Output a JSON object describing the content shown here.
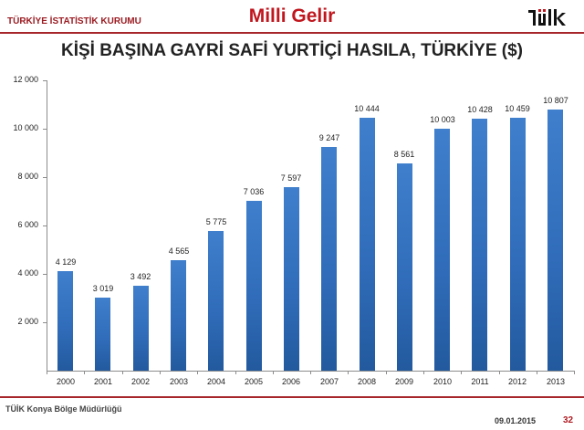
{
  "header": {
    "org_name": "TÜRKİYE İSTATİSTİK KURUMU",
    "section_title": "Milli Gelir",
    "logo_text": "TÜİK"
  },
  "main_title": "KİŞİ BAŞINA GAYRİ SAFİ YURTİÇİ HASILA, TÜRKİYE ($)",
  "footer": {
    "office": "TÜİK Konya Bölge Müdürlüğü",
    "date": "09.01.2015",
    "page_number": "32"
  },
  "colors": {
    "brand_red": "#c0161e",
    "rule_red": "#a6262b",
    "bar_blue": "#2f6bb8"
  },
  "chart_data": {
    "type": "bar",
    "title": "KİŞİ BAŞINA GAYRİ SAFİ YURTİÇİ HASILA, TÜRKİYE ($)",
    "xlabel": "",
    "ylabel": "",
    "categories": [
      "2000",
      "2001",
      "2002",
      "2003",
      "2004",
      "2005",
      "2006",
      "2007",
      "2008",
      "2009",
      "2010",
      "2011",
      "2012",
      "2013"
    ],
    "values": [
      4129,
      3019,
      3492,
      4565,
      5775,
      7036,
      7597,
      9247,
      10444,
      8561,
      10003,
      10428,
      10459,
      10807
    ],
    "value_labels": [
      "4 129",
      "3 019",
      "3 492",
      "4 565",
      "5 775",
      "7 036",
      "7 597",
      "9 247",
      "10 444",
      "8 561",
      "10 003",
      "10 428",
      "10 459",
      "10 807"
    ],
    "ylim": [
      0,
      12000
    ],
    "yticks": [
      2000,
      4000,
      6000,
      8000,
      10000,
      12000
    ],
    "ytick_labels": [
      "2 000",
      "4 000",
      "6 000",
      "8 000",
      "10 000",
      "12 000"
    ],
    "grid": false,
    "legend": null
  }
}
